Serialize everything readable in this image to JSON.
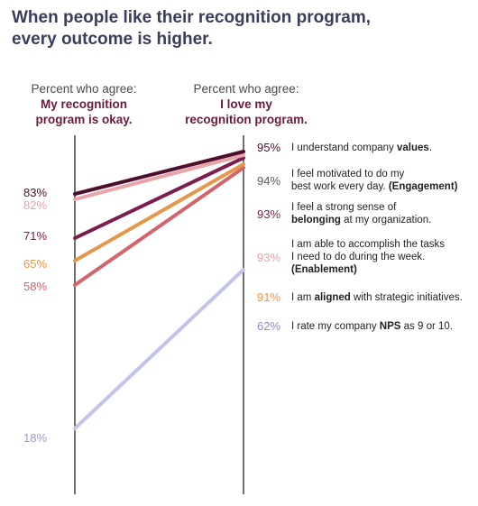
{
  "title_line1": "When people like their recognition program,",
  "title_line2": "every outcome is higher.",
  "left_header": {
    "sub": "Percent who agree:",
    "strong_line1": "My recognition",
    "strong_line2": "program is okay."
  },
  "right_header": {
    "sub": "Percent who agree:",
    "strong_line1": "I love my",
    "strong_line2": "recognition program."
  },
  "chart_data": {
    "type": "line",
    "x": [
      "My recognition program is okay.",
      "I love my recognition program."
    ],
    "series": [
      {
        "values": [
          83,
          95
        ],
        "color": "#4d0f2c",
        "left_label": "83%",
        "right_label": "95%",
        "text_parts": [
          [
            "I understand company ",
            false
          ],
          [
            "values",
            true
          ],
          [
            ".",
            false
          ]
        ]
      },
      {
        "values": [
          82,
          94
        ],
        "color": "#e8a4a8",
        "left_label": "82%",
        "right_label": "94%",
        "text_parts": [
          [
            "I feel motivated to do my",
            false
          ],
          [
            "\n",
            false
          ],
          [
            "best work every day. ",
            false
          ],
          [
            "(Engagement)",
            true
          ]
        ]
      },
      {
        "values": [
          71,
          93
        ],
        "color": "#7d1d4d",
        "left_label": "71%",
        "right_label": "93%",
        "text_parts": [
          [
            "I feel a strong sense of",
            false
          ],
          [
            "\n",
            false
          ],
          [
            "belonging",
            true
          ],
          [
            " at my organization.",
            false
          ]
        ]
      },
      {
        "values": [
          65,
          93
        ],
        "color": "#e8964a",
        "left_label": "65%",
        "right_label": "93%",
        "text_parts": [
          [
            "I am able to accomplish the tasks",
            false
          ],
          [
            "\n",
            false
          ],
          [
            "I need to do during the week.",
            false
          ],
          [
            "\n",
            false
          ],
          [
            "(Enablement)",
            true
          ]
        ]
      },
      {
        "values": [
          58,
          91
        ],
        "color": "#d2646a",
        "left_label": "58%",
        "right_label": "91%",
        "text_parts": [
          [
            "I am ",
            false
          ],
          [
            "aligned",
            true
          ],
          [
            " with strategic initiatives.",
            false
          ]
        ]
      },
      {
        "values": [
          18,
          62
        ],
        "color": "#c2c4ec",
        "left_label": "18%",
        "right_label": "62%",
        "text_parts": [
          [
            "I rate my company ",
            false
          ],
          [
            "NPS",
            true
          ],
          [
            " as 9 or 10.",
            false
          ]
        ]
      }
    ],
    "left_label_colors": [
      "#4d0f2c",
      "#e8a4a8",
      "#7d1d4d",
      "#e8964a",
      "#d2646a",
      "#9a9ccf"
    ],
    "right_label_colors": [
      "#4d0f2c",
      "#5a5a5a",
      "#7d1d4d",
      "#e8a4a8",
      "#e8964a",
      "#8a8cc4"
    ]
  }
}
